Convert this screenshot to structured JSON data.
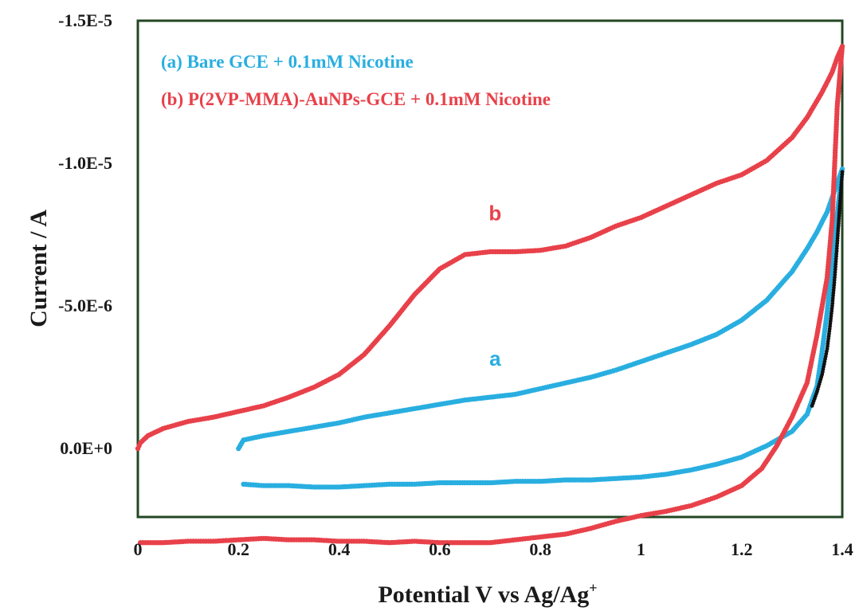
{
  "chart_data": {
    "type": "line",
    "title": "",
    "xlabel": "Potential V vs Ag/Ag",
    "xlabel_sup": "+",
    "ylabel": "Current / A",
    "xlim": [
      0,
      1.4
    ],
    "ylim": [
      2.4e-06,
      -1.5e-05
    ],
    "y_inverted": true,
    "grid": false,
    "legend_position": "top-left",
    "x_ticks": [
      0,
      0.2,
      0.4,
      0.6,
      0.8,
      1,
      1.2,
      1.4
    ],
    "x_tick_labels": [
      "0",
      "0.2",
      "0.4",
      "0.6",
      "0.8",
      "1",
      "1.2",
      "1.4"
    ],
    "y_ticks": [
      -1.5e-05,
      -1e-05,
      -5e-06,
      0
    ],
    "y_tick_labels": [
      "-1.5E-5",
      "-1.0E-5",
      "-5.0E-6",
      "0.0E+0"
    ],
    "legend_entries": [
      "(a) Bare GCE + 0.1mM Nicotine",
      "(b) P(2VP-MMA)-AuNPs-GCE + 0.1mM Nicotine"
    ],
    "annotations": [
      {
        "text": "b",
        "x": 0.71,
        "y": -8e-06,
        "color": "#e8414a"
      },
      {
        "text": "a",
        "x": 0.71,
        "y": -2.9e-06,
        "color": "#29aee0"
      }
    ],
    "series": [
      {
        "label": "a",
        "color": "#29aee0",
        "x": [
          0.2,
          0.21,
          0.25,
          0.3,
          0.35,
          0.4,
          0.45,
          0.5,
          0.55,
          0.6,
          0.65,
          0.7,
          0.75,
          0.8,
          0.85,
          0.9,
          0.95,
          1.0,
          1.05,
          1.1,
          1.15,
          1.2,
          1.25,
          1.3,
          1.33,
          1.35,
          1.37,
          1.38,
          1.39,
          1.4,
          1.39,
          1.38,
          1.37,
          1.36,
          1.35,
          1.33,
          1.3,
          1.25,
          1.2,
          1.15,
          1.1,
          1.05,
          1.0,
          0.95,
          0.9,
          0.85,
          0.8,
          0.75,
          0.7,
          0.65,
          0.6,
          0.55,
          0.5,
          0.45,
          0.4,
          0.35,
          0.3,
          0.25,
          0.21
        ],
        "y": [
          0,
          -3e-07,
          -4.5e-07,
          -6e-07,
          -7.5e-07,
          -9e-07,
          -1.1e-06,
          -1.25e-06,
          -1.4e-06,
          -1.55e-06,
          -1.7e-06,
          -1.8e-06,
          -1.9e-06,
          -2.1e-06,
          -2.3e-06,
          -2.5e-06,
          -2.75e-06,
          -3.05e-06,
          -3.35e-06,
          -3.65e-06,
          -4e-06,
          -4.5e-06,
          -5.2e-06,
          -6.2e-06,
          -7e-06,
          -7.6e-06,
          -8.3e-06,
          -8.8e-06,
          -9.3e-06,
          -9.8e-06,
          -8.2e-06,
          -6.5e-06,
          -4.8e-06,
          -3.4e-06,
          -2.2e-06,
          -1.2e-06,
          -6e-07,
          -1e-07,
          3e-07,
          5.5e-07,
          7.5e-07,
          9e-07,
          1e-06,
          1.05e-06,
          1.1e-06,
          1.1e-06,
          1.15e-06,
          1.15e-06,
          1.2e-06,
          1.2e-06,
          1.2e-06,
          1.25e-06,
          1.25e-06,
          1.3e-06,
          1.35e-06,
          1.35e-06,
          1.3e-06,
          1.3e-06,
          1.25e-06
        ]
      },
      {
        "label": "b",
        "color": "#e8414a",
        "x": [
          0,
          0.005,
          0.02,
          0.05,
          0.1,
          0.15,
          0.2,
          0.25,
          0.3,
          0.35,
          0.4,
          0.45,
          0.5,
          0.55,
          0.6,
          0.65,
          0.7,
          0.75,
          0.8,
          0.85,
          0.9,
          0.95,
          1.0,
          1.05,
          1.1,
          1.15,
          1.2,
          1.25,
          1.3,
          1.33,
          1.36,
          1.38,
          1.39,
          1.4,
          1.39,
          1.385,
          1.38,
          1.37,
          1.35,
          1.33,
          1.3,
          1.27,
          1.24,
          1.2,
          1.15,
          1.1,
          1.05,
          1.0,
          0.95,
          0.9,
          0.85,
          0.8,
          0.75,
          0.7,
          0.65,
          0.6,
          0.55,
          0.5,
          0.45,
          0.4,
          0.35,
          0.3,
          0.25,
          0.2,
          0.15,
          0.1,
          0.05,
          0.02,
          0.005
        ],
        "y": [
          0,
          -2e-07,
          -4.5e-07,
          -7e-07,
          -9.5e-07,
          -1.1e-06,
          -1.3e-06,
          -1.5e-06,
          -1.8e-06,
          -2.15e-06,
          -2.6e-06,
          -3.3e-06,
          -4.3e-06,
          -5.4e-06,
          -6.3e-06,
          -6.8e-06,
          -6.9e-06,
          -6.9e-06,
          -6.95e-06,
          -7.1e-06,
          -7.4e-06,
          -7.8e-06,
          -8.1e-06,
          -8.5e-06,
          -8.9e-06,
          -9.3e-06,
          -9.6e-06,
          -1.01e-05,
          -1.09e-05,
          -1.16e-05,
          -1.25e-05,
          -1.32e-05,
          -1.37e-05,
          -1.41e-05,
          -1.2e-05,
          -1e-05,
          -8e-06,
          -6e-06,
          -4e-06,
          -2.3e-06,
          -1.1e-06,
          -1e-07,
          7e-07,
          1.3e-06,
          1.7e-06,
          2e-06,
          2.2e-06,
          2.35e-06,
          2.55e-06,
          2.8e-06,
          3e-06,
          3.1e-06,
          3.2e-06,
          3.3e-06,
          3.3e-06,
          3.3e-06,
          3.25e-06,
          3.3e-06,
          3.25e-06,
          3.25e-06,
          3.2e-06,
          3.2e-06,
          3.15e-06,
          3.2e-06,
          3.25e-06,
          3.25e-06,
          3.3e-06,
          3.3e-06,
          3.3e-06
        ]
      },
      {
        "label": "",
        "color": "#111111",
        "x": [
          1.4,
          1.395,
          1.39,
          1.385,
          1.38,
          1.375,
          1.37,
          1.36,
          1.35,
          1.34
        ],
        "y": [
          -9.7e-06,
          -8.5e-06,
          -7.2e-06,
          -6e-06,
          -5e-06,
          -4.2e-06,
          -3.5e-06,
          -2.6e-06,
          -2e-06,
          -1.5e-06
        ]
      }
    ]
  }
}
